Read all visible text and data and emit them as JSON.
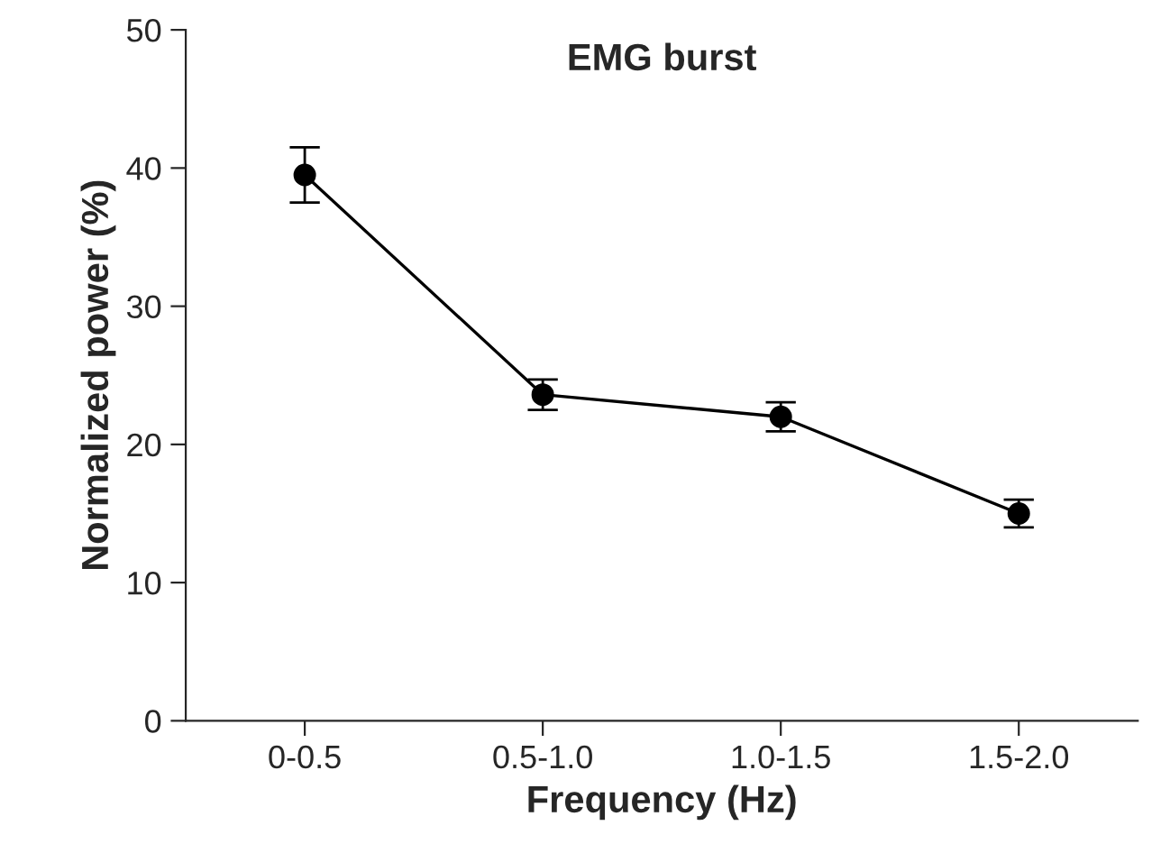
{
  "chart_data": {
    "type": "line",
    "title": "EMG burst",
    "xlabel": "Frequency (Hz)",
    "ylabel": "Normalized power (%)",
    "categories": [
      "0-0.5",
      "0.5-1.0",
      "1.0-1.5",
      "1.5-2.0"
    ],
    "series": [
      {
        "color": "#000000",
        "values": [
          39.5,
          23.6,
          22.0,
          15.0
        ],
        "errors": [
          2.0,
          1.1,
          1.05,
          1.0
        ]
      }
    ],
    "ylim": [
      0,
      50
    ],
    "yticks": [
      0,
      10,
      20,
      30,
      40,
      50
    ],
    "marker": "circle",
    "line_style": "solid",
    "grid": false,
    "legend": false
  }
}
